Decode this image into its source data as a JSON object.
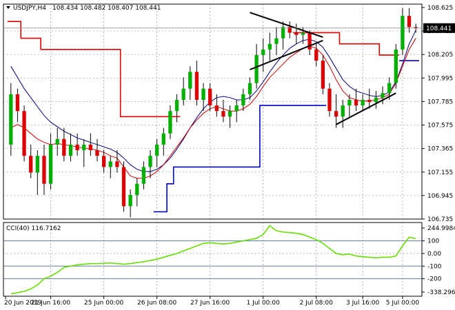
{
  "window": {
    "symbol_label": "USDJPY,H4",
    "ohlc_label": "108.434 108.482 108.407 108.441",
    "cci_label": "CCI(40) 116.7162"
  },
  "colors": {
    "bull": "#00b000",
    "bear": "#dd0000",
    "wick": "#000000",
    "ma_fast": "#cc0000",
    "ma_slow": "#000080",
    "trail_high": "#dd0000",
    "trail_low": "#0000cc",
    "cci_line": "#66dd00",
    "level_line": "#5b7b9b",
    "grid": "#808080",
    "price_tag_bg": "#000000",
    "price_tag_fg": "#ffffff"
  },
  "chart_data": [
    {
      "type": "candlestick",
      "title": "USDJPY,H4",
      "ylim": [
        106.735,
        108.655
      ],
      "y_ticks": [
        "108.625",
        "108.415",
        "108.205",
        "107.995",
        "107.785",
        "107.575",
        "107.365",
        "107.155",
        "106.945",
        "106.735"
      ],
      "current_price": "108.441",
      "x_ticks": [
        "20 Jun 2019",
        "21 Jun 16:00",
        "25 Jun 00:00",
        "26 Jun 08:00",
        "27 Jun 16:00",
        "1 Jul 00:00",
        "2 Jul 08:00",
        "3 Jul 16:00",
        "5 Jul 00:00"
      ],
      "candles": [
        [
          107.4,
          107.95,
          107.3,
          107.85
        ],
        [
          107.85,
          107.9,
          107.6,
          107.7
        ],
        [
          107.7,
          107.75,
          107.25,
          107.3
        ],
        [
          107.3,
          107.4,
          107.1,
          107.15
        ],
        [
          107.15,
          107.35,
          106.95,
          107.3
        ],
        [
          107.3,
          107.4,
          106.95,
          107.05
        ],
        [
          107.05,
          107.5,
          107.0,
          107.4
        ],
        [
          107.4,
          107.55,
          107.3,
          107.45
        ],
        [
          107.45,
          107.55,
          107.25,
          107.3
        ],
        [
          107.3,
          107.5,
          107.25,
          107.4
        ],
        [
          107.4,
          107.5,
          107.3,
          107.35
        ],
        [
          107.35,
          107.45,
          107.2,
          107.4
        ],
        [
          107.4,
          107.5,
          107.3,
          107.35
        ],
        [
          107.35,
          107.45,
          107.25,
          107.3
        ],
        [
          107.3,
          107.35,
          107.15,
          107.2
        ],
        [
          107.2,
          107.3,
          107.1,
          107.25
        ],
        [
          107.25,
          107.35,
          107.15,
          107.2
        ],
        [
          107.2,
          107.25,
          106.8,
          106.85
        ],
        [
          106.85,
          107.0,
          106.75,
          106.95
        ],
        [
          106.95,
          107.1,
          106.85,
          107.05
        ],
        [
          107.05,
          107.25,
          107.0,
          107.2
        ],
        [
          107.2,
          107.35,
          107.1,
          107.3
        ],
        [
          107.3,
          107.45,
          107.2,
          107.4
        ],
        [
          107.4,
          107.55,
          107.3,
          107.5
        ],
        [
          107.5,
          107.75,
          107.45,
          107.7
        ],
        [
          107.7,
          107.85,
          107.6,
          107.8
        ],
        [
          107.8,
          108.0,
          107.75,
          107.9
        ],
        [
          107.9,
          108.1,
          107.8,
          108.05
        ],
        [
          108.05,
          108.15,
          107.75,
          107.8
        ],
        [
          107.8,
          107.95,
          107.7,
          107.9
        ],
        [
          107.9,
          107.95,
          107.7,
          107.75
        ],
        [
          107.75,
          107.85,
          107.65,
          107.7
        ],
        [
          107.7,
          107.8,
          107.6,
          107.65
        ],
        [
          107.65,
          107.75,
          107.55,
          107.7
        ],
        [
          107.7,
          107.8,
          107.6,
          107.75
        ],
        [
          107.75,
          107.9,
          107.7,
          107.85
        ],
        [
          107.85,
          108.0,
          107.8,
          107.95
        ],
        [
          107.95,
          108.3,
          107.9,
          108.2
        ],
        [
          108.2,
          108.35,
          108.05,
          108.25
        ],
        [
          108.25,
          108.4,
          108.15,
          108.3
        ],
        [
          108.3,
          108.45,
          108.2,
          108.35
        ],
        [
          108.35,
          108.5,
          108.25,
          108.45
        ],
        [
          108.45,
          108.5,
          108.35,
          108.4
        ],
        [
          108.4,
          108.48,
          108.3,
          108.38
        ],
        [
          108.38,
          108.45,
          108.3,
          108.4
        ],
        [
          108.4,
          108.42,
          108.2,
          108.25
        ],
        [
          108.25,
          108.3,
          108.1,
          108.15
        ],
        [
          108.15,
          108.2,
          107.85,
          107.9
        ],
        [
          107.9,
          107.95,
          107.65,
          107.7
        ],
        [
          107.7,
          107.85,
          107.55,
          107.65
        ],
        [
          107.65,
          107.8,
          107.55,
          107.75
        ],
        [
          107.75,
          107.85,
          107.65,
          107.8
        ],
        [
          107.8,
          107.9,
          107.7,
          107.75
        ],
        [
          107.75,
          107.85,
          107.7,
          107.8
        ],
        [
          107.8,
          107.9,
          107.72,
          107.78
        ],
        [
          107.78,
          107.88,
          107.72,
          107.82
        ],
        [
          107.82,
          107.92,
          107.76,
          107.86
        ],
        [
          107.86,
          108.0,
          107.8,
          107.95
        ],
        [
          107.95,
          108.3,
          107.9,
          108.25
        ],
        [
          108.25,
          108.62,
          108.2,
          108.55
        ],
        [
          108.55,
          108.62,
          108.4,
          108.45
        ],
        [
          108.45,
          108.48,
          108.4,
          108.441
        ]
      ],
      "ma_fast": [
        107.55,
        107.58,
        107.55,
        107.5,
        107.45,
        107.42,
        107.4,
        107.41,
        107.4,
        107.39,
        107.38,
        107.37,
        107.36,
        107.35,
        107.33,
        107.3,
        107.28,
        107.2,
        107.12,
        107.1,
        107.1,
        107.12,
        107.16,
        107.22,
        107.3,
        107.38,
        107.46,
        107.55,
        107.62,
        107.68,
        107.72,
        107.74,
        107.72,
        107.7,
        107.7,
        107.72,
        107.76,
        107.83,
        107.92,
        108.0,
        108.06,
        108.12,
        108.18,
        108.22,
        108.26,
        108.28,
        108.26,
        108.2,
        108.1,
        107.98,
        107.88,
        107.82,
        107.8,
        107.79,
        107.79,
        107.8,
        107.82,
        107.85,
        107.95,
        108.1,
        108.25,
        108.35
      ],
      "ma_slow": [
        108.1,
        108.0,
        107.9,
        107.82,
        107.74,
        107.66,
        107.6,
        107.56,
        107.52,
        107.49,
        107.46,
        107.44,
        107.42,
        107.4,
        107.38,
        107.36,
        107.33,
        107.28,
        107.22,
        107.18,
        107.16,
        107.16,
        107.18,
        107.22,
        107.28,
        107.36,
        107.45,
        107.55,
        107.64,
        107.72,
        107.78,
        107.82,
        107.83,
        107.82,
        107.8,
        107.8,
        107.82,
        107.88,
        107.96,
        108.05,
        108.13,
        108.2,
        108.26,
        108.3,
        108.33,
        108.34,
        108.32,
        108.27,
        108.18,
        108.08,
        107.98,
        107.92,
        107.88,
        107.86,
        107.84,
        107.83,
        107.84,
        107.87,
        107.96,
        108.12,
        108.3,
        108.42
      ],
      "trail_high": [
        108.5,
        108.5,
        108.35,
        108.35,
        108.35,
        108.25,
        108.25,
        108.25,
        108.25,
        108.25,
        108.25,
        108.25,
        108.25,
        108.25,
        108.25,
        108.25,
        108.25,
        107.65,
        107.65,
        107.65,
        107.65,
        107.65,
        107.65,
        107.65,
        107.65,
        107.65,
        null,
        null,
        null,
        null,
        null,
        null,
        null,
        null,
        null,
        null,
        null,
        null,
        null,
        null,
        null,
        null,
        null,
        108.4,
        108.4,
        108.4,
        108.4,
        108.4,
        108.4,
        108.4,
        108.3,
        108.3,
        108.3,
        108.3,
        108.3,
        108.3,
        108.2,
        108.2,
        108.2,
        null,
        null,
        null
      ],
      "trail_low": [
        null,
        null,
        null,
        null,
        null,
        null,
        null,
        null,
        null,
        null,
        null,
        null,
        null,
        null,
        null,
        null,
        null,
        null,
        null,
        null,
        null,
        null,
        106.8,
        106.8,
        107.05,
        107.2,
        107.2,
        107.2,
        107.2,
        107.2,
        107.2,
        107.2,
        107.2,
        107.2,
        107.2,
        107.2,
        107.2,
        107.2,
        107.75,
        107.75,
        107.75,
        107.75,
        107.75,
        107.75,
        107.75,
        107.75,
        107.75,
        107.75,
        null,
        null,
        null,
        null,
        null,
        null,
        null,
        null,
        null,
        null,
        null,
        108.15,
        108.15,
        108.15
      ],
      "trendlines": [
        {
          "from": [
            36,
            108.58
          ],
          "to": [
            47,
            108.36
          ]
        },
        {
          "from": [
            36,
            108.07
          ],
          "to": [
            47,
            108.33
          ]
        },
        {
          "from": [
            49,
            107.58
          ],
          "to": [
            58,
            107.86
          ]
        }
      ]
    },
    {
      "type": "line",
      "title": "CCI(40) 116.7162",
      "ylim": [
        -338.2969,
        244.9984
      ],
      "y_ticks": [
        "244.9984",
        "100",
        "0.00",
        "-100",
        "-200",
        "-338.2969"
      ],
      "levels": [
        100,
        -100,
        -200
      ],
      "values": [
        -320,
        -310,
        -300,
        -280,
        -250,
        -200,
        -180,
        -150,
        -110,
        -100,
        -90,
        -85,
        -80,
        -80,
        -78,
        -75,
        -80,
        -85,
        -80,
        -72,
        -65,
        -55,
        -45,
        -30,
        -15,
        0,
        20,
        40,
        60,
        80,
        85,
        80,
        75,
        80,
        90,
        100,
        110,
        120,
        150,
        220,
        180,
        170,
        165,
        160,
        150,
        130,
        110,
        80,
        40,
        0,
        -10,
        -5,
        -20,
        -25,
        -30,
        -35,
        -30,
        -30,
        -20,
        60,
        130,
        116.7162
      ]
    }
  ]
}
